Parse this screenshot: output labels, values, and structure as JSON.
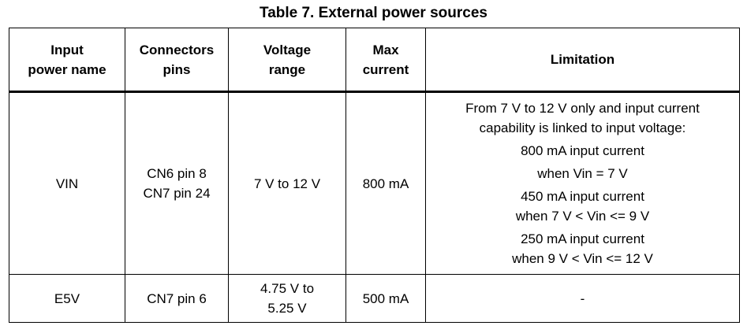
{
  "title": "Table 7. External power sources",
  "headers": {
    "input_power_name": [
      "Input",
      "power name"
    ],
    "connectors_pins": [
      "Connectors",
      "pins"
    ],
    "voltage_range": [
      "Voltage",
      "range"
    ],
    "max_current": [
      "Max",
      "current"
    ],
    "limitation": "Limitation"
  },
  "rows": [
    {
      "name": "VIN",
      "pins": [
        "CN6 pin 8",
        "CN7 pin 24"
      ],
      "voltage": "7 V to 12 V",
      "current": "800 mA",
      "limitation": [
        "From 7 V to 12 V only and input current",
        "capability is linked to input voltage:",
        "800 mA input current",
        "when Vin = 7 V",
        "450 mA input current",
        "when 7 V < Vin <= 9 V",
        "250 mA input current",
        "when 9 V < Vin <= 12 V"
      ]
    },
    {
      "name": "E5V",
      "pins": [
        "CN7 pin 6"
      ],
      "voltage": [
        "4.75 V to",
        "5.25 V"
      ],
      "current": "500 mA",
      "limitation": "-"
    }
  ]
}
